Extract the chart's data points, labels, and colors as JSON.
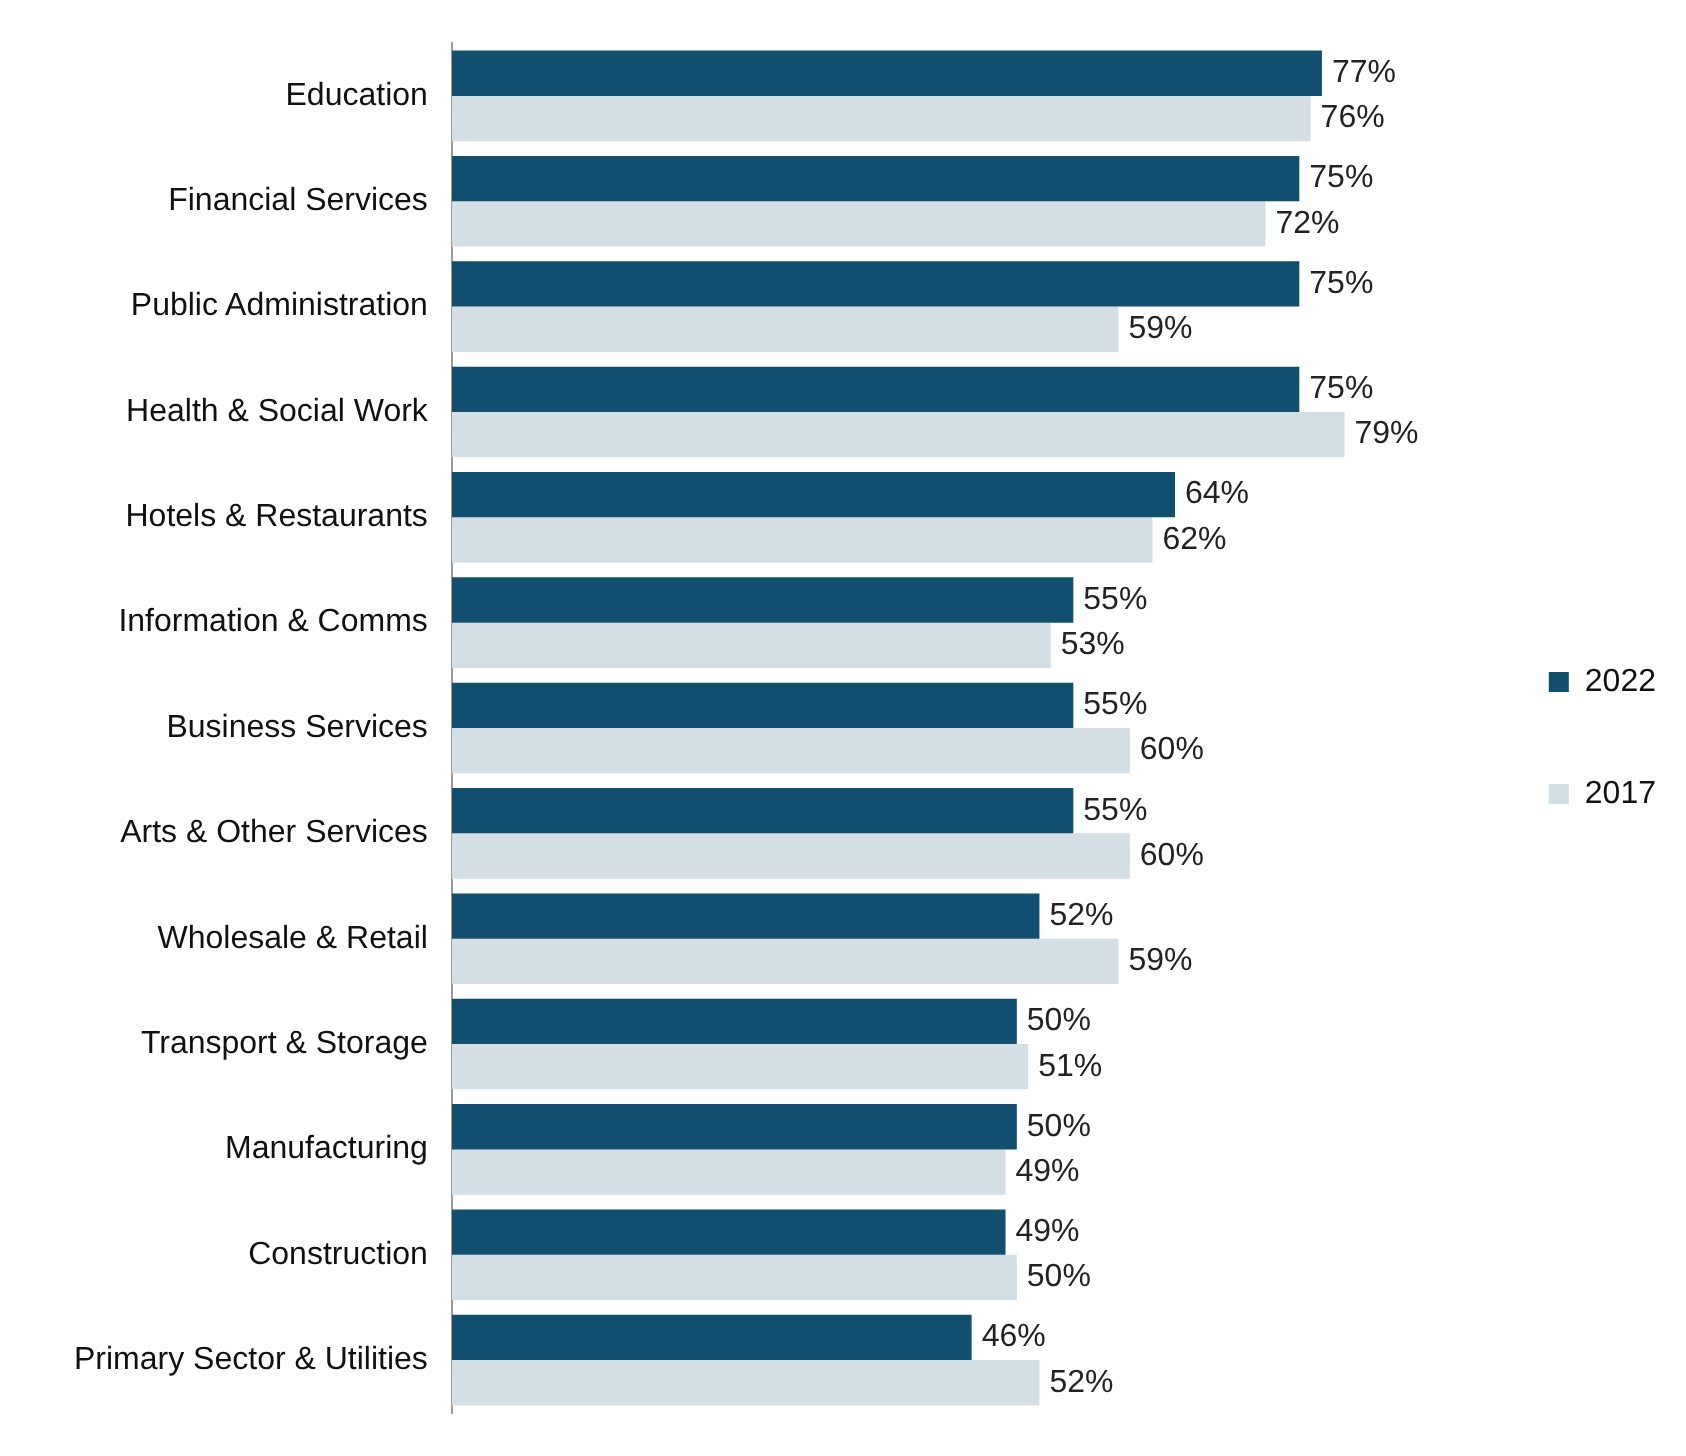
{
  "chart_data": {
    "type": "bar",
    "orientation": "horizontal",
    "legend": "right",
    "categories": [
      "Education",
      "Financial Services",
      "Public Administration",
      "Health & Social Work",
      "Hotels & Restaurants",
      "Information & Comms",
      "Business Services",
      "Arts & Other Services",
      "Wholesale & Retail",
      "Transport & Storage",
      "Manufacturing",
      "Construction",
      "Primary Sector & Utilities"
    ],
    "series": [
      {
        "name": "2022",
        "color": "#124e6e",
        "values": [
          77,
          75,
          75,
          75,
          64,
          55,
          55,
          55,
          52,
          50,
          50,
          49,
          46
        ],
        "value_labels": [
          "77%",
          "75%",
          "75%",
          "75%",
          "64%",
          "55%",
          "55%",
          "55%",
          "52%",
          "50%",
          "50%",
          "49%",
          "46%"
        ]
      },
      {
        "name": "2017",
        "color": "#d3dee5",
        "values": [
          76,
          72,
          59,
          79,
          62,
          53,
          60,
          60,
          59,
          51,
          49,
          50,
          52
        ],
        "value_labels": [
          "76%",
          "72%",
          "59%",
          "79%",
          "62%",
          "53%",
          "60%",
          "60%",
          "59%",
          "51%",
          "49%",
          "50%",
          "52%"
        ]
      }
    ]
  }
}
